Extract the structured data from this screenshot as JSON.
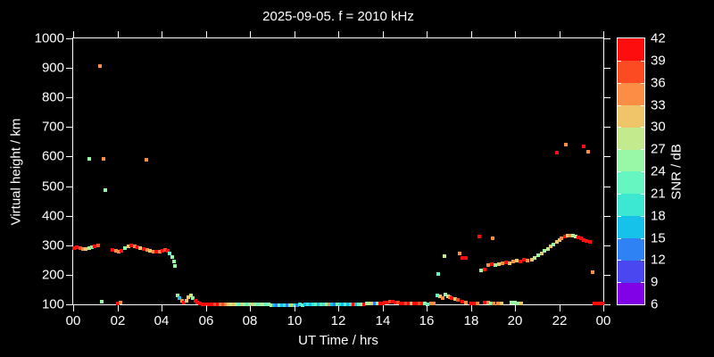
{
  "title": "2025-09-05. f = 2010 kHz",
  "chart_data": {
    "type": "scatter",
    "title": "2025-09-05. f = 2010 kHz",
    "xlabel": "UT Time / hrs",
    "ylabel": "Virtual height / km",
    "xlim": [
      0,
      24
    ],
    "ylim": [
      100,
      1000
    ],
    "grid": false,
    "background": "#000000",
    "frame_color": "#ffffff",
    "x_tick_values": [
      0,
      2,
      4,
      6,
      8,
      10,
      12,
      14,
      16,
      18,
      20,
      22,
      24
    ],
    "x_tick_labels": [
      "00",
      "02",
      "04",
      "06",
      "08",
      "10",
      "12",
      "14",
      "16",
      "18",
      "20",
      "22",
      "00"
    ],
    "y_tick_values": [
      100,
      200,
      300,
      400,
      500,
      600,
      700,
      800,
      900,
      1000
    ],
    "y_tick_labels": [
      "100",
      "200",
      "300",
      "400",
      "500",
      "600",
      "700",
      "800",
      "900",
      "1000"
    ],
    "colorbar": {
      "title": "SNR / dB",
      "levels": [
        6,
        9,
        12,
        15,
        18,
        21,
        24,
        27,
        30,
        33,
        36,
        39,
        42
      ],
      "colors": [
        "#8202e8",
        "#4a46f0",
        "#2f82f4",
        "#16c2ea",
        "#3ce8d2",
        "#66f6c2",
        "#98f8a6",
        "#c3ea8c",
        "#f0c468",
        "#fb8e44",
        "#fc4a22",
        "#fd0d0d"
      ]
    },
    "points_format": [
      "ut_hr",
      "virtual_height_km",
      "snr_db"
    ],
    "points": [
      [
        0.05,
        291,
        40
      ],
      [
        0.18,
        293,
        40
      ],
      [
        0.32,
        290,
        37
      ],
      [
        0.45,
        288,
        34
      ],
      [
        0.58,
        287,
        31
      ],
      [
        0.72,
        289,
        28
      ],
      [
        0.85,
        293,
        22
      ],
      [
        0.98,
        297,
        40
      ],
      [
        1.12,
        299,
        37
      ],
      [
        1.78,
        283,
        40
      ],
      [
        1.92,
        280,
        34
      ],
      [
        2.06,
        279,
        34
      ],
      [
        2.2,
        281,
        40
      ],
      [
        2.36,
        291,
        25
      ],
      [
        2.5,
        295,
        31
      ],
      [
        2.63,
        298,
        40
      ],
      [
        2.77,
        296,
        34
      ],
      [
        2.9,
        293,
        40
      ],
      [
        3.04,
        290,
        31
      ],
      [
        3.2,
        286,
        40
      ],
      [
        3.34,
        283,
        34
      ],
      [
        3.48,
        281,
        31
      ],
      [
        3.62,
        279,
        34
      ],
      [
        3.76,
        277,
        40
      ],
      [
        3.9,
        279,
        34
      ],
      [
        4.04,
        282,
        40
      ],
      [
        4.16,
        283,
        37
      ],
      [
        4.28,
        280,
        40
      ],
      [
        4.38,
        272,
        22
      ],
      [
        4.47,
        259,
        25
      ],
      [
        4.55,
        245,
        25
      ],
      [
        4.62,
        230,
        25
      ],
      [
        1.2,
        905,
        34
      ],
      [
        0.73,
        592,
        25
      ],
      [
        1.37,
        592,
        34
      ],
      [
        3.3,
        589,
        34
      ],
      [
        1.45,
        486,
        25
      ],
      [
        1.3,
        108,
        25
      ],
      [
        2.02,
        104,
        40
      ],
      [
        2.16,
        105,
        34
      ],
      [
        4.72,
        131,
        25
      ],
      [
        4.82,
        122,
        16
      ],
      [
        4.92,
        113,
        34
      ],
      [
        5.02,
        107,
        40
      ],
      [
        5.12,
        112,
        31
      ],
      [
        5.22,
        124,
        31
      ],
      [
        5.32,
        130,
        28
      ],
      [
        5.42,
        121,
        25
      ],
      [
        5.52,
        112,
        40
      ],
      [
        5.62,
        106,
        40
      ],
      [
        5.72,
        103,
        40
      ],
      [
        5.84,
        101,
        40
      ],
      [
        5.96,
        100,
        40
      ],
      [
        6.08,
        101,
        40
      ],
      [
        6.2,
        100,
        40
      ],
      [
        6.32,
        101,
        40
      ],
      [
        6.44,
        100,
        37
      ],
      [
        6.56,
        101,
        40
      ],
      [
        6.68,
        100,
        34
      ],
      [
        6.8,
        101,
        37
      ],
      [
        6.92,
        100,
        34
      ],
      [
        7.04,
        100,
        31
      ],
      [
        7.16,
        101,
        28
      ],
      [
        7.28,
        100,
        31
      ],
      [
        7.4,
        100,
        25
      ],
      [
        7.52,
        101,
        22
      ],
      [
        7.64,
        100,
        31
      ],
      [
        7.76,
        100,
        25
      ],
      [
        7.88,
        101,
        22
      ],
      [
        8.0,
        100,
        25
      ],
      [
        8.12,
        100,
        31
      ],
      [
        8.24,
        101,
        25
      ],
      [
        8.36,
        100,
        22
      ],
      [
        8.48,
        100,
        25
      ],
      [
        8.6,
        100,
        28
      ],
      [
        8.72,
        100,
        22
      ],
      [
        8.84,
        100,
        25
      ],
      [
        8.96,
        98,
        25
      ],
      [
        9.08,
        97,
        16
      ],
      [
        9.2,
        96,
        13
      ],
      [
        9.32,
        97,
        22
      ],
      [
        9.44,
        96,
        16
      ],
      [
        9.56,
        97,
        19
      ],
      [
        9.68,
        98,
        13
      ],
      [
        9.8,
        97,
        22
      ],
      [
        9.92,
        98,
        31
      ],
      [
        10.04,
        98,
        19
      ],
      [
        10.16,
        98,
        13
      ],
      [
        10.28,
        99,
        19
      ],
      [
        10.4,
        98,
        22
      ],
      [
        10.52,
        99,
        16
      ],
      [
        10.64,
        99,
        19
      ],
      [
        10.76,
        100,
        16
      ],
      [
        10.88,
        100,
        19
      ],
      [
        11.0,
        100,
        22
      ],
      [
        11.12,
        100,
        16
      ],
      [
        11.24,
        100,
        22
      ],
      [
        11.36,
        100,
        19
      ],
      [
        11.48,
        101,
        25
      ],
      [
        11.6,
        100,
        34
      ],
      [
        11.72,
        100,
        16
      ],
      [
        11.84,
        101,
        13
      ],
      [
        11.96,
        100,
        22
      ],
      [
        12.08,
        100,
        19
      ],
      [
        12.2,
        101,
        16
      ],
      [
        12.32,
        100,
        22
      ],
      [
        12.44,
        100,
        16
      ],
      [
        12.56,
        101,
        19
      ],
      [
        12.68,
        100,
        40
      ],
      [
        12.8,
        100,
        16
      ],
      [
        12.92,
        101,
        22
      ],
      [
        13.04,
        100,
        25
      ],
      [
        13.16,
        101,
        40
      ],
      [
        13.28,
        102,
        25
      ],
      [
        13.4,
        102,
        28
      ],
      [
        13.52,
        103,
        31
      ],
      [
        13.64,
        102,
        13
      ],
      [
        13.76,
        103,
        25
      ],
      [
        13.88,
        103,
        40
      ],
      [
        14.0,
        104,
        40
      ],
      [
        14.12,
        105,
        40
      ],
      [
        14.24,
        107,
        40
      ],
      [
        14.36,
        108,
        37
      ],
      [
        14.48,
        108,
        40
      ],
      [
        14.6,
        107,
        40
      ],
      [
        14.72,
        105,
        37
      ],
      [
        14.84,
        104,
        40
      ],
      [
        14.96,
        103,
        40
      ],
      [
        15.08,
        103,
        37
      ],
      [
        15.2,
        103,
        40
      ],
      [
        15.32,
        102,
        31
      ],
      [
        15.44,
        103,
        40
      ],
      [
        15.56,
        103,
        40
      ],
      [
        15.68,
        102,
        37
      ],
      [
        15.8,
        103,
        40
      ],
      [
        15.92,
        102,
        25
      ],
      [
        16.04,
        101,
        22
      ],
      [
        16.2,
        103,
        34
      ],
      [
        16.32,
        102,
        34
      ],
      [
        16.5,
        131,
        22
      ],
      [
        16.62,
        127,
        31
      ],
      [
        16.74,
        122,
        34
      ],
      [
        16.86,
        133,
        25
      ],
      [
        16.95,
        128,
        28
      ],
      [
        17.05,
        124,
        34
      ],
      [
        17.15,
        120,
        40
      ],
      [
        17.28,
        117,
        31
      ],
      [
        17.4,
        114,
        37
      ],
      [
        17.62,
        108,
        40
      ],
      [
        17.78,
        107,
        34
      ],
      [
        18.0,
        104,
        40
      ],
      [
        18.15,
        103,
        40
      ],
      [
        18.32,
        104,
        34
      ],
      [
        18.62,
        105,
        40
      ],
      [
        18.78,
        105,
        34
      ],
      [
        18.92,
        104,
        25
      ],
      [
        19.05,
        104,
        34
      ],
      [
        19.25,
        103,
        34
      ],
      [
        19.4,
        103,
        31
      ],
      [
        19.85,
        106,
        25
      ],
      [
        19.98,
        106,
        25
      ],
      [
        20.12,
        104,
        25
      ],
      [
        20.28,
        104,
        31
      ],
      [
        23.58,
        104,
        40
      ],
      [
        23.68,
        103,
        40
      ],
      [
        23.78,
        104,
        40
      ],
      [
        23.88,
        103,
        40
      ],
      [
        23.96,
        104,
        40
      ],
      [
        16.52,
        203,
        22
      ],
      [
        16.8,
        264,
        28
      ],
      [
        17.5,
        271,
        34
      ],
      [
        17.62,
        256,
        40
      ],
      [
        17.78,
        256,
        40
      ],
      [
        18.4,
        330,
        40
      ],
      [
        18.48,
        215,
        25
      ],
      [
        18.62,
        219,
        40
      ],
      [
        19.0,
        322,
        34
      ],
      [
        18.8,
        232,
        34
      ],
      [
        18.95,
        236,
        40
      ],
      [
        19.12,
        234,
        25
      ],
      [
        19.28,
        236,
        31
      ],
      [
        19.45,
        240,
        34
      ],
      [
        19.6,
        242,
        40
      ],
      [
        19.75,
        238,
        31
      ],
      [
        19.92,
        245,
        34
      ],
      [
        20.08,
        248,
        31
      ],
      [
        20.25,
        244,
        40
      ],
      [
        20.42,
        250,
        40
      ],
      [
        20.58,
        248,
        34
      ],
      [
        20.75,
        252,
        31
      ],
      [
        20.9,
        258,
        28
      ],
      [
        21.05,
        265,
        25
      ],
      [
        21.2,
        272,
        31
      ],
      [
        21.35,
        280,
        25
      ],
      [
        21.5,
        288,
        28
      ],
      [
        21.62,
        295,
        31
      ],
      [
        21.75,
        303,
        25
      ],
      [
        21.88,
        310,
        31
      ],
      [
        22.0,
        318,
        31
      ],
      [
        22.12,
        324,
        34
      ],
      [
        22.25,
        329,
        40
      ],
      [
        22.38,
        332,
        31
      ],
      [
        22.5,
        334,
        34
      ],
      [
        22.62,
        332,
        28
      ],
      [
        22.75,
        329,
        25
      ],
      [
        22.88,
        326,
        40
      ],
      [
        23.0,
        322,
        40
      ],
      [
        23.12,
        318,
        40
      ],
      [
        23.25,
        314,
        40
      ],
      [
        23.38,
        310,
        40
      ],
      [
        23.5,
        208,
        34
      ],
      [
        21.9,
        613,
        40
      ],
      [
        22.3,
        641,
        34
      ],
      [
        23.1,
        634,
        40
      ],
      [
        23.3,
        616,
        34
      ]
    ]
  }
}
